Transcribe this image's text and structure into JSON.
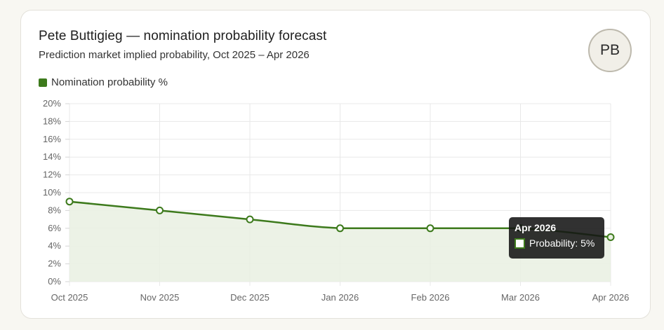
{
  "card": {
    "title": "Pete Buttigieg — nomination probability forecast",
    "subtitle": "Prediction market implied probability, Oct 2025 – Apr 2026",
    "avatar_initials": "PB"
  },
  "colors": {
    "series": "#3d7a1c",
    "fill": "#e9f0e2",
    "grid": "#e8e8e8"
  },
  "chart_data": {
    "type": "line",
    "title": "Pete Buttigieg — nomination probability forecast",
    "subtitle": "Prediction market implied probability, Oct 2025 – Apr 2026",
    "categories": [
      "Oct 2025",
      "Nov 2025",
      "Dec 2025",
      "Jan 2026",
      "Feb 2026",
      "Mar 2026",
      "Apr 2026"
    ],
    "series": [
      {
        "name": "Nomination probability %",
        "values": [
          9,
          8,
          7,
          6,
          6,
          6,
          5
        ]
      }
    ],
    "ylim": [
      0,
      20
    ],
    "yticks": [
      "0%",
      "2%",
      "4%",
      "6%",
      "8%",
      "10%",
      "12%",
      "14%",
      "16%",
      "18%",
      "20%"
    ],
    "grid": true,
    "legend": "top-left",
    "area_fill": true
  },
  "tooltip": {
    "title": "Apr 2026",
    "label": "Probability: 5%"
  }
}
